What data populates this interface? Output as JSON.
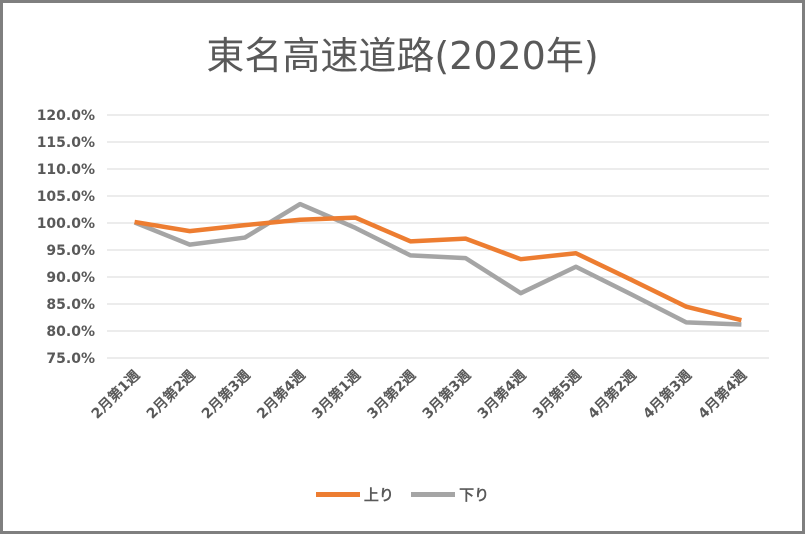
{
  "chart_data": {
    "type": "line",
    "title": "東名高速道路(2020年)",
    "categories": [
      "2月第1週",
      "2月第2週",
      "2月第3週",
      "2月第4週",
      "3月第1週",
      "3月第2週",
      "3月第3週",
      "3月第4週",
      "3月第5週",
      "4月第2週",
      "4月第3週",
      "4月第4週"
    ],
    "series": [
      {
        "name": "上り",
        "color": "#ed7d31",
        "values": [
          100.2,
          98.5,
          99.6,
          100.6,
          101.0,
          96.6,
          97.1,
          93.3,
          94.4,
          89.5,
          84.5,
          82.0
        ]
      },
      {
        "name": "下り",
        "color": "#a5a5a5",
        "values": [
          100.1,
          96.0,
          97.3,
          103.5,
          99.1,
          94.0,
          93.5,
          87.0,
          91.9,
          86.8,
          81.6,
          81.2
        ]
      }
    ],
    "ylim": [
      75,
      120
    ],
    "yticks": [
      "75.0%",
      "80.0%",
      "85.0%",
      "90.0%",
      "95.0%",
      "100.0%",
      "105.0%",
      "110.0%",
      "115.0%",
      "120.0%"
    ],
    "xlabel": "",
    "ylabel": "",
    "grid": true,
    "legend": "bottom"
  }
}
